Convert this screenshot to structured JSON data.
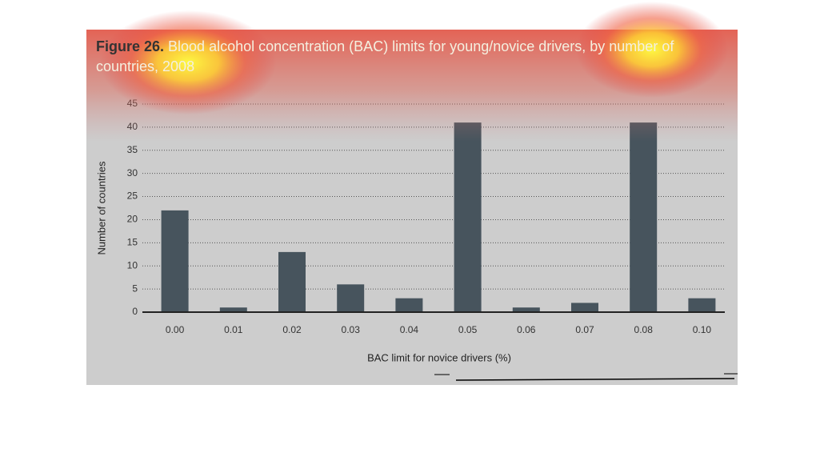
{
  "chart_data": {
    "type": "bar",
    "title_label": "Figure 26.",
    "title": "Blood alcohol concentration (BAC) limits for young/novice drivers, by number of countries, 2008",
    "categories": [
      "0.00",
      "0.01",
      "0.02",
      "0.03",
      "0.04",
      "0.05",
      "0.06",
      "0.07",
      "0.08",
      "0.10"
    ],
    "values": [
      22,
      1,
      13,
      6,
      3,
      41,
      1,
      2,
      41,
      3
    ],
    "color": "#47545d",
    "ylim": [
      0,
      45
    ],
    "yticks": [
      0,
      5,
      10,
      15,
      20,
      25,
      30,
      35,
      40,
      45
    ],
    "grid": true,
    "xlabel": "BAC limit for novice drivers (%)",
    "ylabel": "Number of countries"
  }
}
